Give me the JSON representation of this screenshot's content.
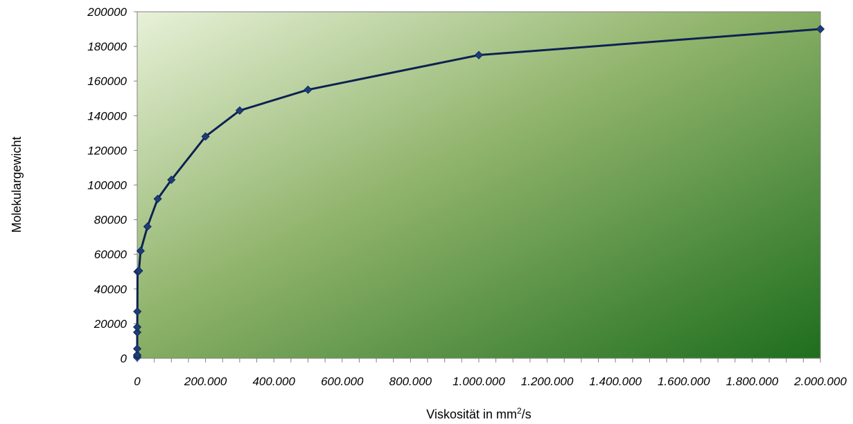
{
  "chart_data": {
    "type": "line",
    "title": "",
    "xlabel": "Viskosität in mm",
    "xlabel_sup": "2",
    "xlabel_suffix": "/s",
    "ylabel": "Molekulargewicht",
    "xlim": [
      0,
      2000000
    ],
    "ylim": [
      0,
      200000
    ],
    "x_ticks": [
      "0",
      "200.000",
      "400.000",
      "600.000",
      "800.000",
      "1.000.000",
      "1.200.000",
      "1.400.000",
      "1.600.000",
      "1.800.000",
      "2.000.000"
    ],
    "y_ticks": [
      "0",
      "20000",
      "40000",
      "60000",
      "80000",
      "100000",
      "120000",
      "140000",
      "160000",
      "180000",
      "200000"
    ],
    "grid": false,
    "legend": "none",
    "colors": {
      "line": "#0d2150",
      "marker": "#1c3d7a",
      "first_marker": "#6d8fc7",
      "bg_light": "#e8f1d8",
      "bg_mid": "#8fb36a",
      "bg_dark": "#1e6e1e",
      "plot_border": "#808080"
    },
    "series": [
      {
        "x": [
          0.65,
          5,
          10,
          20,
          50,
          100,
          500,
          1000,
          5000,
          10000,
          30000,
          60000,
          100000,
          200000,
          300000,
          500000,
          1000000,
          2000000
        ],
        "y": [
          500,
          1200,
          2000,
          5500,
          15000,
          18000,
          27000,
          50000,
          50500,
          62000,
          76000,
          92000,
          103000,
          128000,
          143000,
          155000,
          175000,
          190000
        ]
      }
    ]
  }
}
